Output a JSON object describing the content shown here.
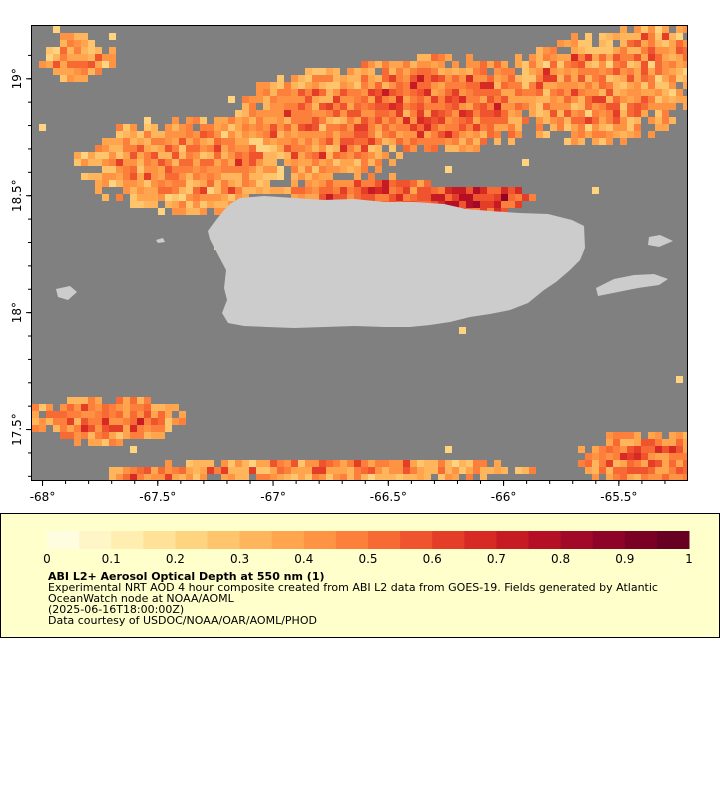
{
  "map": {
    "lon_range": [
      -68.05,
      -65.2
    ],
    "lat_range": [
      17.28,
      19.23
    ],
    "lon_ticks": [
      {
        "value": -68,
        "label": "-68°"
      },
      {
        "value": -67.5,
        "label": "-67.5°"
      },
      {
        "value": -67,
        "label": "-67°"
      },
      {
        "value": -66.5,
        "label": "-66.5°"
      },
      {
        "value": -66,
        "label": "-66°"
      },
      {
        "value": -65.5,
        "label": "-65.5°"
      }
    ],
    "lat_ticks": [
      {
        "value": 19,
        "label": "19°"
      },
      {
        "value": 18.5,
        "label": "18.5°"
      },
      {
        "value": 18,
        "label": "18°"
      },
      {
        "value": 17.5,
        "label": "17.5°"
      }
    ],
    "colors": {
      "no_data": "#808080",
      "land": "#cccccc",
      "legend_background": "#ffffcc"
    }
  },
  "colorbar": {
    "min": 0,
    "max": 1,
    "ticks": [
      "0",
      "0.1",
      "0.2",
      "0.3",
      "0.4",
      "0.5",
      "0.6",
      "0.7",
      "0.8",
      "0.9",
      "1"
    ],
    "colors": [
      "#fffde0",
      "#fff6c8",
      "#ffeeb0",
      "#ffe298",
      "#ffd480",
      "#ffc56c",
      "#ffb55c",
      "#ffa54e",
      "#ff9344",
      "#fd7f3c",
      "#f86a34",
      "#f0542e",
      "#e53e28",
      "#d72a25",
      "#c61a24",
      "#b50f26",
      "#a20828",
      "#8e0428",
      "#7a0026",
      "#680024"
    ]
  },
  "legend": {
    "title": "ABI L2+ Aerosol Optical Depth at 550 nm (1)",
    "line1": "Experimental NRT AOD 4 hour composite created from ABI L2 data from GOES-19. Fields generated by Atlantic",
    "line2": "OceanWatch node at NOAA/AOML",
    "line3": "(2025-06-16T18:00:00Z)",
    "line4": "Data courtesy of USDOC/NOAA/OAR/AOML/PHOD"
  }
}
